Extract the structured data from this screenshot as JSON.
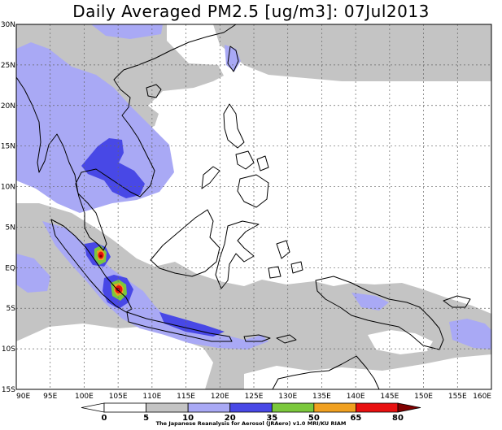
{
  "title": "Daily Averaged PM2.5 [ug/m3]: 07Jul2013",
  "credit": "The Japanese Reanalysis for Aerosol (JRAero) v1.0 MRI/KU RIAM",
  "lat_ticks": [
    {
      "value": 30,
      "label": "30N"
    },
    {
      "value": 25,
      "label": "25N"
    },
    {
      "value": 20,
      "label": "20N"
    },
    {
      "value": 15,
      "label": "15N"
    },
    {
      "value": 10,
      "label": "10N"
    },
    {
      "value": 5,
      "label": "5N"
    },
    {
      "value": 0,
      "label": "EQ"
    },
    {
      "value": -5,
      "label": "5S"
    },
    {
      "value": -10,
      "label": "10S"
    },
    {
      "value": -15,
      "label": "15S"
    }
  ],
  "lon_ticks": [
    {
      "value": 90,
      "label": "90E"
    },
    {
      "value": 95,
      "label": "95E"
    },
    {
      "value": 100,
      "label": "100E"
    },
    {
      "value": 105,
      "label": "105E"
    },
    {
      "value": 110,
      "label": "110E"
    },
    {
      "value": 115,
      "label": "115E"
    },
    {
      "value": 120,
      "label": "120E"
    },
    {
      "value": 125,
      "label": "125E"
    },
    {
      "value": 130,
      "label": "130E"
    },
    {
      "value": 135,
      "label": "135E"
    },
    {
      "value": 140,
      "label": "140E"
    },
    {
      "value": 145,
      "label": "145E"
    },
    {
      "value": 150,
      "label": "150E"
    },
    {
      "value": 155,
      "label": "155E"
    },
    {
      "value": 160,
      "label": "160E"
    }
  ],
  "colorbar": {
    "levels": [
      "0",
      "5",
      "10",
      "20",
      "35",
      "50",
      "65",
      "80"
    ],
    "colors": [
      "#ffffff",
      "#ffffff",
      "#c4c4c4",
      "#a9a9f5",
      "#4848e6",
      "#7bc83c",
      "#f0a020",
      "#e81010",
      "#800000"
    ]
  },
  "colors": {
    "gray": "#c4c4c4",
    "lightblue": "#a9a9f5",
    "blue": "#4848e6",
    "green": "#7bc83c",
    "orange": "#f0a020",
    "red": "#e81010",
    "darkred": "#800000"
  }
}
